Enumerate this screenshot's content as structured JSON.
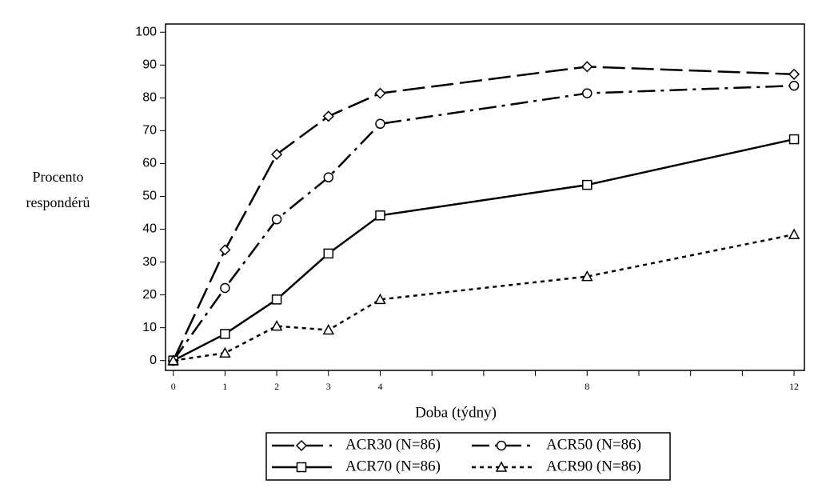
{
  "chart_data": {
    "type": "line",
    "xlabel": "Doba (týdny)",
    "ylabel": "Procento respondérů",
    "x": [
      0,
      1,
      2,
      3,
      4,
      8,
      12
    ],
    "series": [
      {
        "name": "ACR30 (N=86)",
        "color": "#000000",
        "marker": "diamond",
        "line_style": "long-dash",
        "values": [
          0,
          33.7,
          62.8,
          74.4,
          81.4,
          89.5,
          87.2
        ]
      },
      {
        "name": "ACR50 (N=86)",
        "color": "#000000",
        "marker": "circle",
        "line_style": "dash-dot",
        "values": [
          0,
          22.1,
          43.0,
          55.8,
          72.1,
          81.4,
          83.7
        ]
      },
      {
        "name": "ACR70 (N=86)",
        "color": "#000000",
        "marker": "square",
        "line_style": "solid",
        "values": [
          0,
          8.1,
          18.6,
          32.6,
          44.2,
          53.5,
          67.4
        ]
      },
      {
        "name": "ACR90 (N=86)",
        "color": "#000000",
        "marker": "triangle",
        "line_style": "dotted",
        "values": [
          0,
          2.3,
          10.5,
          9.3,
          18.6,
          25.6,
          38.4
        ]
      }
    ],
    "xlim": [
      -0.15,
      12.2
    ],
    "xticks": [
      0,
      1,
      2,
      3,
      4,
      8,
      12
    ],
    "x_minor_ticks": [
      5,
      6,
      7,
      9,
      10,
      11
    ],
    "ylim": [
      -3,
      102.5
    ],
    "yticks": [
      0,
      10,
      20,
      30,
      40,
      50,
      60,
      70,
      80,
      90,
      100
    ],
    "grid": false,
    "legend_position": "bottom"
  }
}
